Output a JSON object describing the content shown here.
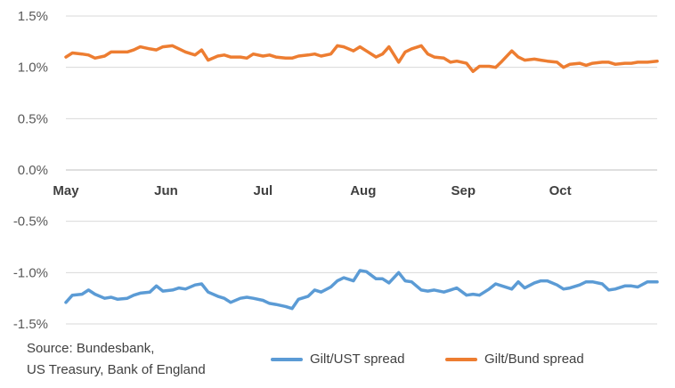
{
  "chart_data": {
    "type": "line",
    "ylim": [
      -1.5,
      1.5
    ],
    "yticks": [
      "1.5%",
      "1.0%",
      "0.5%",
      "0.0%",
      "-0.5%",
      "-1.0%",
      "-1.5%"
    ],
    "ytick_values": [
      1.5,
      1.0,
      0.5,
      0.0,
      -0.5,
      -1.0,
      -1.5
    ],
    "xlim": [
      "2019-05-01",
      "2019-10-31"
    ],
    "xticks": [
      {
        "label": "May",
        "date": "2019-05-01"
      },
      {
        "label": "Jun",
        "date": "2019-06-01"
      },
      {
        "label": "Jul",
        "date": "2019-07-01"
      },
      {
        "label": "Aug",
        "date": "2019-08-01"
      },
      {
        "label": "Sep",
        "date": "2019-09-01"
      },
      {
        "label": "Oct",
        "date": "2019-10-01"
      }
    ],
    "grid": true,
    "legend_position": "bottom-right",
    "series": [
      {
        "name": "Gilt/UST spread",
        "color": "#5B9BD5",
        "points": [
          [
            "2019-05-01",
            -1.29
          ],
          [
            "2019-05-03",
            -1.22
          ],
          [
            "2019-05-06",
            -1.21
          ],
          [
            "2019-05-08",
            -1.17
          ],
          [
            "2019-05-10",
            -1.21
          ],
          [
            "2019-05-13",
            -1.25
          ],
          [
            "2019-05-15",
            -1.24
          ],
          [
            "2019-05-17",
            -1.26
          ],
          [
            "2019-05-20",
            -1.25
          ],
          [
            "2019-05-22",
            -1.22
          ],
          [
            "2019-05-24",
            -1.2
          ],
          [
            "2019-05-27",
            -1.19
          ],
          [
            "2019-05-29",
            -1.13
          ],
          [
            "2019-05-31",
            -1.18
          ],
          [
            "2019-06-03",
            -1.17
          ],
          [
            "2019-06-05",
            -1.15
          ],
          [
            "2019-06-07",
            -1.16
          ],
          [
            "2019-06-10",
            -1.12
          ],
          [
            "2019-06-12",
            -1.11
          ],
          [
            "2019-06-14",
            -1.19
          ],
          [
            "2019-06-17",
            -1.23
          ],
          [
            "2019-06-19",
            -1.25
          ],
          [
            "2019-06-21",
            -1.29
          ],
          [
            "2019-06-24",
            -1.25
          ],
          [
            "2019-06-26",
            -1.24
          ],
          [
            "2019-06-28",
            -1.25
          ],
          [
            "2019-07-01",
            -1.27
          ],
          [
            "2019-07-03",
            -1.3
          ],
          [
            "2019-07-05",
            -1.31
          ],
          [
            "2019-07-08",
            -1.33
          ],
          [
            "2019-07-10",
            -1.35
          ],
          [
            "2019-07-12",
            -1.26
          ],
          [
            "2019-07-15",
            -1.23
          ],
          [
            "2019-07-17",
            -1.17
          ],
          [
            "2019-07-19",
            -1.19
          ],
          [
            "2019-07-22",
            -1.14
          ],
          [
            "2019-07-24",
            -1.08
          ],
          [
            "2019-07-26",
            -1.05
          ],
          [
            "2019-07-29",
            -1.08
          ],
          [
            "2019-07-31",
            -0.98
          ],
          [
            "2019-08-02",
            -0.99
          ],
          [
            "2019-08-05",
            -1.06
          ],
          [
            "2019-08-07",
            -1.06
          ],
          [
            "2019-08-09",
            -1.1
          ],
          [
            "2019-08-12",
            -1.0
          ],
          [
            "2019-08-14",
            -1.08
          ],
          [
            "2019-08-16",
            -1.09
          ],
          [
            "2019-08-19",
            -1.17
          ],
          [
            "2019-08-21",
            -1.18
          ],
          [
            "2019-08-23",
            -1.17
          ],
          [
            "2019-08-26",
            -1.19
          ],
          [
            "2019-08-28",
            -1.17
          ],
          [
            "2019-08-30",
            -1.15
          ],
          [
            "2019-09-02",
            -1.22
          ],
          [
            "2019-09-04",
            -1.21
          ],
          [
            "2019-09-06",
            -1.22
          ],
          [
            "2019-09-09",
            -1.16
          ],
          [
            "2019-09-11",
            -1.11
          ],
          [
            "2019-09-13",
            -1.13
          ],
          [
            "2019-09-16",
            -1.16
          ],
          [
            "2019-09-18",
            -1.09
          ],
          [
            "2019-09-20",
            -1.15
          ],
          [
            "2019-09-23",
            -1.1
          ],
          [
            "2019-09-25",
            -1.08
          ],
          [
            "2019-09-27",
            -1.08
          ],
          [
            "2019-09-30",
            -1.12
          ],
          [
            "2019-10-02",
            -1.16
          ],
          [
            "2019-10-04",
            -1.15
          ],
          [
            "2019-10-07",
            -1.12
          ],
          [
            "2019-10-09",
            -1.09
          ],
          [
            "2019-10-11",
            -1.09
          ],
          [
            "2019-10-14",
            -1.11
          ],
          [
            "2019-10-16",
            -1.17
          ],
          [
            "2019-10-18",
            -1.16
          ],
          [
            "2019-10-21",
            -1.13
          ],
          [
            "2019-10-23",
            -1.13
          ],
          [
            "2019-10-25",
            -1.14
          ],
          [
            "2019-10-28",
            -1.09
          ],
          [
            "2019-10-31",
            -1.09
          ]
        ]
      },
      {
        "name": "Gilt/Bund spread",
        "color": "#ED7D31",
        "points": [
          [
            "2019-05-01",
            1.1
          ],
          [
            "2019-05-03",
            1.14
          ],
          [
            "2019-05-06",
            1.13
          ],
          [
            "2019-05-08",
            1.12
          ],
          [
            "2019-05-10",
            1.09
          ],
          [
            "2019-05-13",
            1.11
          ],
          [
            "2019-05-15",
            1.15
          ],
          [
            "2019-05-17",
            1.15
          ],
          [
            "2019-05-20",
            1.15
          ],
          [
            "2019-05-22",
            1.17
          ],
          [
            "2019-05-24",
            1.2
          ],
          [
            "2019-05-27",
            1.18
          ],
          [
            "2019-05-29",
            1.17
          ],
          [
            "2019-05-31",
            1.2
          ],
          [
            "2019-06-03",
            1.21
          ],
          [
            "2019-06-05",
            1.18
          ],
          [
            "2019-06-07",
            1.15
          ],
          [
            "2019-06-10",
            1.12
          ],
          [
            "2019-06-12",
            1.17
          ],
          [
            "2019-06-14",
            1.07
          ],
          [
            "2019-06-17",
            1.11
          ],
          [
            "2019-06-19",
            1.12
          ],
          [
            "2019-06-21",
            1.1
          ],
          [
            "2019-06-24",
            1.1
          ],
          [
            "2019-06-26",
            1.09
          ],
          [
            "2019-06-28",
            1.13
          ],
          [
            "2019-07-01",
            1.11
          ],
          [
            "2019-07-03",
            1.12
          ],
          [
            "2019-07-05",
            1.1
          ],
          [
            "2019-07-08",
            1.09
          ],
          [
            "2019-07-10",
            1.09
          ],
          [
            "2019-07-12",
            1.11
          ],
          [
            "2019-07-15",
            1.12
          ],
          [
            "2019-07-17",
            1.13
          ],
          [
            "2019-07-19",
            1.11
          ],
          [
            "2019-07-22",
            1.13
          ],
          [
            "2019-07-24",
            1.21
          ],
          [
            "2019-07-26",
            1.2
          ],
          [
            "2019-07-29",
            1.16
          ],
          [
            "2019-07-31",
            1.2
          ],
          [
            "2019-08-02",
            1.16
          ],
          [
            "2019-08-05",
            1.1
          ],
          [
            "2019-08-07",
            1.13
          ],
          [
            "2019-08-09",
            1.2
          ],
          [
            "2019-08-12",
            1.05
          ],
          [
            "2019-08-14",
            1.15
          ],
          [
            "2019-08-16",
            1.18
          ],
          [
            "2019-08-19",
            1.21
          ],
          [
            "2019-08-21",
            1.13
          ],
          [
            "2019-08-23",
            1.1
          ],
          [
            "2019-08-26",
            1.09
          ],
          [
            "2019-08-28",
            1.05
          ],
          [
            "2019-08-30",
            1.06
          ],
          [
            "2019-09-02",
            1.04
          ],
          [
            "2019-09-04",
            0.96
          ],
          [
            "2019-09-06",
            1.01
          ],
          [
            "2019-09-09",
            1.01
          ],
          [
            "2019-09-11",
            1.0
          ],
          [
            "2019-09-13",
            1.06
          ],
          [
            "2019-09-16",
            1.16
          ],
          [
            "2019-09-18",
            1.1
          ],
          [
            "2019-09-20",
            1.07
          ],
          [
            "2019-09-23",
            1.08
          ],
          [
            "2019-09-25",
            1.07
          ],
          [
            "2019-09-27",
            1.06
          ],
          [
            "2019-09-30",
            1.05
          ],
          [
            "2019-10-02",
            1.0
          ],
          [
            "2019-10-04",
            1.03
          ],
          [
            "2019-10-07",
            1.04
          ],
          [
            "2019-10-09",
            1.02
          ],
          [
            "2019-10-11",
            1.04
          ],
          [
            "2019-10-14",
            1.05
          ],
          [
            "2019-10-16",
            1.05
          ],
          [
            "2019-10-18",
            1.03
          ],
          [
            "2019-10-21",
            1.04
          ],
          [
            "2019-10-23",
            1.04
          ],
          [
            "2019-10-25",
            1.05
          ],
          [
            "2019-10-28",
            1.05
          ],
          [
            "2019-10-31",
            1.06
          ]
        ]
      }
    ]
  },
  "source_lines": [
    "Source: Bundesbank,",
    "US Treasury, Bank of England"
  ]
}
